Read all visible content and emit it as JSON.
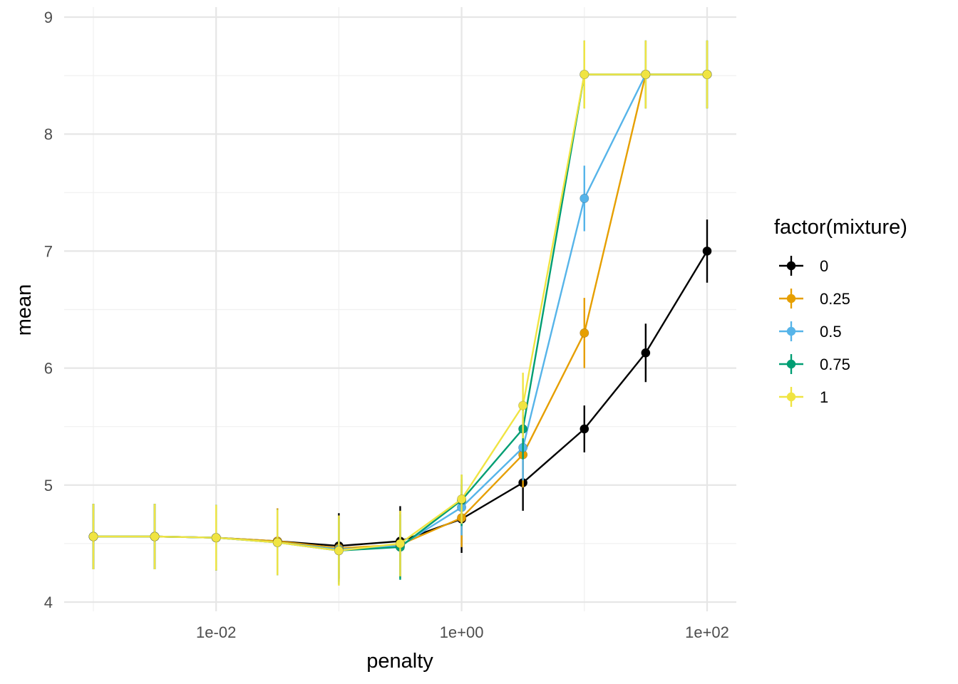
{
  "chart_data": {
    "type": "line",
    "xlabel": "penalty",
    "ylabel": "mean",
    "x_scale": "log10",
    "xlim": [
      0.001,
      100
    ],
    "ylim": [
      4,
      9
    ],
    "x_ticks": [
      {
        "value": 0.01,
        "label": "1e-02"
      },
      {
        "value": 1,
        "label": "1e+00"
      },
      {
        "value": 100,
        "label": "1e+02"
      }
    ],
    "y_ticks": [
      {
        "value": 4,
        "label": "4"
      },
      {
        "value": 5,
        "label": "5"
      },
      {
        "value": 6,
        "label": "6"
      },
      {
        "value": 7,
        "label": "7"
      },
      {
        "value": 8,
        "label": "8"
      },
      {
        "value": 9,
        "label": "9"
      }
    ],
    "grid": true,
    "error_bars": true,
    "legend": {
      "title": "factor(mixture)",
      "position": "right"
    },
    "x": [
      0.001,
      0.00316,
      0.01,
      0.0316,
      0.1,
      0.316,
      1,
      3.16,
      10,
      31.6,
      100
    ],
    "series": [
      {
        "name": "0",
        "color": "#000000",
        "values": [
          4.56,
          4.56,
          4.55,
          4.52,
          4.48,
          4.52,
          4.71,
          5.02,
          5.48,
          6.13,
          7.0
        ],
        "error": [
          0.28,
          0.28,
          0.28,
          0.28,
          0.28,
          0.3,
          0.29,
          0.24,
          0.2,
          0.25,
          0.27
        ]
      },
      {
        "name": "0.25",
        "color": "#E69F00",
        "values": [
          4.56,
          4.56,
          4.55,
          4.52,
          4.46,
          4.49,
          4.72,
          5.26,
          6.3,
          8.51,
          8.51
        ],
        "error": [
          0.28,
          0.28,
          0.28,
          0.28,
          0.28,
          0.28,
          0.25,
          0.28,
          0.3,
          0.29,
          0.29
        ]
      },
      {
        "name": "0.5",
        "color": "#56B4E9",
        "values": [
          4.56,
          4.56,
          4.55,
          4.51,
          4.45,
          4.48,
          4.81,
          5.32,
          7.45,
          8.51,
          8.51
        ],
        "error": [
          0.28,
          0.28,
          0.28,
          0.28,
          0.28,
          0.28,
          0.24,
          0.28,
          0.28,
          0.29,
          0.29
        ]
      },
      {
        "name": "0.75",
        "color": "#009E73",
        "values": [
          4.56,
          4.56,
          4.55,
          4.51,
          4.44,
          4.47,
          4.87,
          5.48,
          8.51,
          8.51,
          8.51
        ],
        "error": [
          0.28,
          0.28,
          0.28,
          0.28,
          0.29,
          0.28,
          0.22,
          0.26,
          0.29,
          0.29,
          0.29
        ]
      },
      {
        "name": "1",
        "color": "#F0E442",
        "values": [
          4.56,
          4.56,
          4.55,
          4.51,
          4.44,
          4.5,
          4.88,
          5.68,
          8.51,
          8.51,
          8.51
        ],
        "error": [
          0.28,
          0.28,
          0.28,
          0.28,
          0.3,
          0.28,
          0.21,
          0.28,
          0.29,
          0.29,
          0.29
        ]
      }
    ]
  }
}
